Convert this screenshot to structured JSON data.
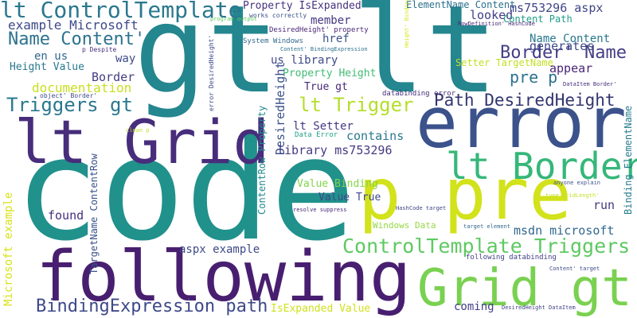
{
  "words": [
    "gt lt",
    "code",
    "error",
    "following",
    "p pre",
    "Grid gt",
    "lt Grid",
    "lt Border",
    "lt ControlTemplate",
    "ControlTemplate Triggers",
    "BindingExpression path",
    "Triggers gt",
    "Path DesiredHeight",
    "Border' Name",
    "lt Trigger",
    "pre p",
    "Name Content'",
    "example Microsoft",
    "documentation",
    "Height Value",
    "en us",
    "Border",
    "way",
    "Property IsExpanded",
    "member",
    "href",
    "us library",
    "Property Height",
    "True gt",
    "DesiredHeight",
    "lt Setter",
    "library ms753296",
    "contains",
    "Value Binding",
    "Value True",
    "ContentRow Property",
    "TargetName ContentRow",
    "Microsoft example",
    "found",
    "run",
    "msdn microsoft",
    "aspx example",
    "ElementName Content",
    "ms753296 aspx",
    "looked",
    "Content Path",
    "generates",
    "Name Content",
    "Setter TargetName",
    "appear",
    "Binding ElementName",
    "IsExpanded Value",
    "coming",
    "Windows Data",
    "System Windows",
    "DesiredHeight' property",
    "works correctly",
    "Content' BindingExpression",
    "RowDefinition' HashCode",
    "p Despite",
    "object' Border'",
    "error DesiredHeight'",
    "databinding error",
    "Data Error",
    "following databinding",
    "target element",
    "HashCode target",
    "resolve suppress",
    "type GridLength'",
    "anyone explain",
    "DataItem Border'",
    "DesiredHeight DataItem",
    "Content' target",
    "clean p",
    "program output",
    "Height' Binding"
  ]
}
